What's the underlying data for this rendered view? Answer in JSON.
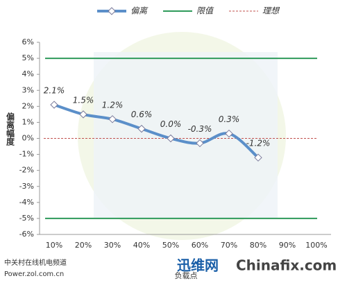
{
  "chart_data": {
    "type": "line",
    "y_label": "偏离幅度",
    "x_label": "负载点",
    "categories": [
      "10%",
      "20%",
      "30%",
      "40%",
      "50%",
      "60%",
      "70%",
      "80%",
      "90%",
      "100%"
    ],
    "series": [
      {
        "name": "偏离",
        "color": "#5b8fc9",
        "values": [
          2.1,
          1.5,
          1.2,
          0.6,
          0.0,
          -0.3,
          0.3,
          -1.2,
          null,
          null
        ],
        "value_labels": [
          "2.1%",
          "1.5%",
          "1.2%",
          "0.6%",
          "0.0%",
          "-0.3%",
          "0.3%",
          "-1.2%",
          null,
          null
        ]
      }
    ],
    "lines": [
      {
        "name": "限值",
        "color": "#2e9a5a",
        "dash": false,
        "values": [
          5,
          -5
        ]
      },
      {
        "name": "理想",
        "color": "#c0504d",
        "dash": true,
        "values": [
          0
        ]
      }
    ],
    "ylim": [
      -6,
      6
    ],
    "yticks": [
      {
        "value": -6,
        "label": "-6%"
      },
      {
        "value": -5,
        "label": "-5%"
      },
      {
        "value": -4,
        "label": "-4%"
      },
      {
        "value": -3,
        "label": "-3%"
      },
      {
        "value": -2,
        "label": "-2%"
      },
      {
        "value": -1,
        "label": "-1%"
      },
      {
        "value": 0,
        "label": "0%"
      },
      {
        "value": 1,
        "label": "1%"
      },
      {
        "value": 2,
        "label": "2%"
      },
      {
        "value": 3,
        "label": "3%"
      },
      {
        "value": 4,
        "label": "4%"
      },
      {
        "value": 5,
        "label": "5%"
      },
      {
        "value": 6,
        "label": "6%"
      }
    ],
    "watermarks": [
      "中关村在线机电频道",
      "Power.zol.com.cn",
      "迅维网",
      "Chinafix.com"
    ]
  }
}
